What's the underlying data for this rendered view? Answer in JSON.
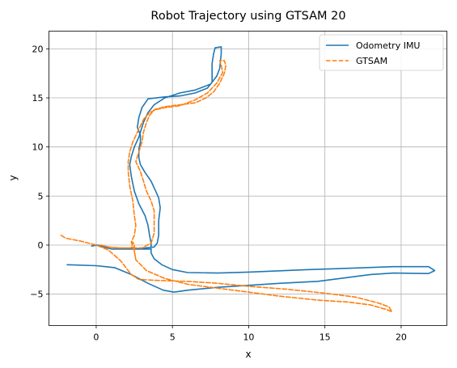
{
  "chart_data": {
    "type": "line",
    "title": "Robot Trajectory using GTSAM 20",
    "xlabel": "x",
    "ylabel": "y",
    "xlim": [
      -3.1,
      23.0
    ],
    "ylim": [
      -8.2,
      21.8
    ],
    "xticks": [
      0,
      5,
      10,
      15,
      20
    ],
    "yticks": [
      -5,
      0,
      5,
      10,
      15,
      20
    ],
    "grid": true,
    "legend_position": "top-right",
    "series": [
      {
        "name": "Odometry IMU",
        "color": "#1f77b4",
        "dash": "solid",
        "points": [
          [
            -1.9,
            -2.0
          ],
          [
            0.0,
            -2.1
          ],
          [
            1.2,
            -2.3
          ],
          [
            2.3,
            -3.0
          ],
          [
            3.4,
            -3.9
          ],
          [
            4.4,
            -4.6
          ],
          [
            5.1,
            -4.8
          ],
          [
            6.0,
            -4.6
          ],
          [
            8.0,
            -4.3
          ],
          [
            10.0,
            -4.1
          ],
          [
            12.0,
            -3.9
          ],
          [
            14.5,
            -3.7
          ],
          [
            16.0,
            -3.4
          ],
          [
            18.0,
            -3.0
          ],
          [
            19.5,
            -2.85
          ],
          [
            21.8,
            -2.9
          ],
          [
            22.2,
            -2.6
          ],
          [
            21.8,
            -2.2
          ],
          [
            19.5,
            -2.2
          ],
          [
            16.0,
            -2.4
          ],
          [
            14.0,
            -2.5
          ],
          [
            10.0,
            -2.75
          ],
          [
            8.0,
            -2.85
          ],
          [
            6.0,
            -2.8
          ],
          [
            5.0,
            -2.5
          ],
          [
            4.3,
            -2.0
          ],
          [
            3.8,
            -1.4
          ],
          [
            3.6,
            -0.8
          ],
          [
            3.6,
            -0.4
          ],
          [
            2.5,
            -0.4
          ],
          [
            1.0,
            -0.4
          ],
          [
            0.5,
            -0.2
          ],
          [
            0.1,
            0.0
          ],
          [
            -0.3,
            -0.1
          ],
          [
            0.1,
            0.0
          ],
          [
            0.5,
            -0.2
          ],
          [
            1.0,
            -0.4
          ],
          [
            2.5,
            -0.4
          ],
          [
            3.8,
            -0.2
          ],
          [
            4.0,
            0.2
          ],
          [
            4.1,
            1.0
          ],
          [
            4.1,
            2.5
          ],
          [
            4.2,
            3.8
          ],
          [
            4.1,
            4.8
          ],
          [
            3.9,
            5.5
          ],
          [
            3.6,
            6.5
          ],
          [
            3.2,
            7.4
          ],
          [
            2.9,
            8.2
          ],
          [
            2.8,
            8.9
          ],
          [
            2.8,
            9.8
          ],
          [
            2.9,
            10.5
          ],
          [
            2.9,
            11.2
          ],
          [
            2.7,
            12.0
          ],
          [
            2.8,
            13.0
          ],
          [
            3.0,
            14.0
          ],
          [
            3.4,
            14.9
          ],
          [
            4.5,
            15.1
          ],
          [
            5.5,
            15.2
          ],
          [
            6.5,
            15.5
          ],
          [
            7.3,
            16.0
          ],
          [
            7.6,
            16.6
          ],
          [
            7.6,
            17.5
          ],
          [
            7.6,
            18.5
          ],
          [
            7.7,
            19.5
          ],
          [
            7.8,
            20.1
          ],
          [
            8.2,
            20.2
          ],
          [
            8.2,
            19.5
          ],
          [
            8.1,
            18.0
          ],
          [
            7.9,
            17.2
          ],
          [
            7.5,
            16.4
          ],
          [
            6.5,
            15.8
          ],
          [
            5.5,
            15.5
          ],
          [
            4.5,
            15.0
          ],
          [
            3.8,
            14.3
          ],
          [
            3.4,
            13.5
          ],
          [
            3.1,
            12.5
          ],
          [
            2.8,
            11.0
          ],
          [
            2.5,
            10.0
          ],
          [
            2.3,
            9.0
          ],
          [
            2.2,
            8.2
          ],
          [
            2.3,
            7.0
          ],
          [
            2.5,
            5.5
          ],
          [
            2.8,
            4.2
          ],
          [
            3.2,
            3.0
          ],
          [
            3.4,
            2.0
          ],
          [
            3.5,
            1.0
          ],
          [
            3.6,
            0.2
          ],
          [
            3.6,
            -0.4
          ]
        ]
      },
      {
        "name": "GTSAM",
        "color": "#ff7f0e",
        "dash": "dashed",
        "points": [
          [
            -2.3,
            1.0
          ],
          [
            -2.0,
            0.7
          ],
          [
            -1.0,
            0.4
          ],
          [
            0.0,
            0.0
          ],
          [
            0.8,
            -0.5
          ],
          [
            1.6,
            -1.6
          ],
          [
            2.3,
            -3.0
          ],
          [
            2.8,
            -3.5
          ],
          [
            4.0,
            -3.6
          ],
          [
            6.0,
            -3.7
          ],
          [
            8.0,
            -3.9
          ],
          [
            10.0,
            -4.2
          ],
          [
            12.5,
            -4.5
          ],
          [
            15.0,
            -4.9
          ],
          [
            17.0,
            -5.3
          ],
          [
            18.5,
            -5.9
          ],
          [
            19.2,
            -6.3
          ],
          [
            19.4,
            -6.8
          ],
          [
            19.1,
            -6.6
          ],
          [
            18.0,
            -6.1
          ],
          [
            16.5,
            -5.8
          ],
          [
            14.5,
            -5.6
          ],
          [
            12.0,
            -5.2
          ],
          [
            10.0,
            -4.8
          ],
          [
            8.0,
            -4.4
          ],
          [
            6.0,
            -4.0
          ],
          [
            4.5,
            -3.4
          ],
          [
            3.3,
            -2.6
          ],
          [
            2.6,
            -1.5
          ],
          [
            2.5,
            -0.6
          ],
          [
            2.5,
            0.0
          ],
          [
            2.4,
            0.3
          ],
          [
            2.3,
            -0.3
          ],
          [
            1.5,
            -0.3
          ],
          [
            0.8,
            -0.2
          ],
          [
            0.3,
            0.0
          ],
          [
            0.8,
            -0.2
          ],
          [
            1.5,
            -0.3
          ],
          [
            2.3,
            -0.3
          ],
          [
            3.0,
            -0.3
          ],
          [
            3.6,
            0.2
          ],
          [
            3.8,
            1.2
          ],
          [
            3.8,
            2.5
          ],
          [
            3.8,
            3.5
          ],
          [
            3.6,
            4.5
          ],
          [
            3.3,
            5.5
          ],
          [
            3.1,
            6.5
          ],
          [
            2.9,
            7.5
          ],
          [
            2.6,
            8.5
          ],
          [
            2.8,
            9.5
          ],
          [
            3.0,
            10.5
          ],
          [
            3.1,
            11.5
          ],
          [
            3.3,
            12.5
          ],
          [
            3.5,
            13.2
          ],
          [
            3.8,
            13.8
          ],
          [
            4.5,
            14.1
          ],
          [
            5.5,
            14.3
          ],
          [
            6.5,
            14.5
          ],
          [
            7.2,
            15.0
          ],
          [
            7.7,
            15.6
          ],
          [
            8.1,
            16.5
          ],
          [
            8.4,
            17.5
          ],
          [
            8.5,
            18.3
          ],
          [
            8.4,
            18.8
          ],
          [
            8.1,
            18.8
          ],
          [
            8.2,
            18.3
          ],
          [
            8.3,
            17.6
          ],
          [
            7.9,
            16.5
          ],
          [
            7.3,
            15.5
          ],
          [
            6.5,
            14.8
          ],
          [
            5.5,
            14.2
          ],
          [
            4.5,
            14.0
          ],
          [
            3.9,
            13.8
          ],
          [
            3.5,
            13.5
          ],
          [
            3.1,
            12.8
          ],
          [
            2.7,
            11.5
          ],
          [
            2.4,
            10.5
          ],
          [
            2.2,
            9.5
          ],
          [
            2.1,
            8.5
          ],
          [
            2.1,
            7.5
          ],
          [
            2.2,
            6.0
          ],
          [
            2.4,
            4.5
          ],
          [
            2.5,
            3.0
          ],
          [
            2.6,
            2.0
          ],
          [
            2.5,
            1.0
          ],
          [
            2.3,
            0.3
          ],
          [
            2.5,
            -0.6
          ],
          [
            2.6,
            -1.5
          ]
        ]
      }
    ]
  }
}
